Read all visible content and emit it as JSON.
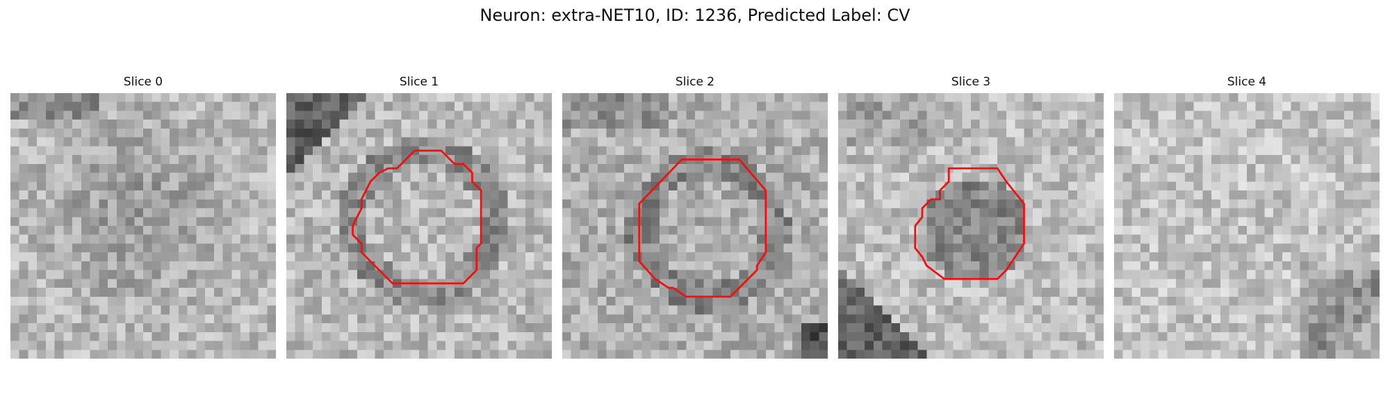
{
  "figure": {
    "title": "Neuron: extra-NET10, ID: 1236, Predicted Label: CV"
  },
  "slices": [
    {
      "title": "Slice 0",
      "has_contour": false
    },
    {
      "title": "Slice 1",
      "has_contour": true
    },
    {
      "title": "Slice 2",
      "has_contour": true
    },
    {
      "title": "Slice 3",
      "has_contour": true
    },
    {
      "title": "Slice 4",
      "has_contour": false
    }
  ],
  "colors": {
    "contour": "#ee1111",
    "background": "#ffffff"
  }
}
